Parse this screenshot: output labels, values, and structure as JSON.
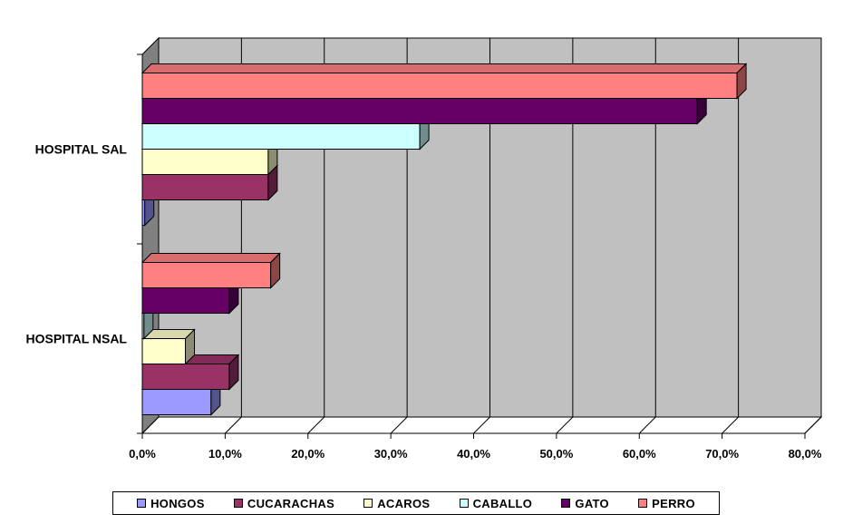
{
  "chart_data": {
    "type": "bar",
    "orientation": "horizontal",
    "three_d": true,
    "categories": [
      "HOSPITAL NSAL",
      "HOSPITAL SAL"
    ],
    "x_ticks": [
      "0,0%",
      "10,0%",
      "20,0%",
      "30,0%",
      "40,0%",
      "50,0%",
      "60,0%",
      "70,0%",
      "80,0%"
    ],
    "xlim": [
      0,
      80
    ],
    "grid": true,
    "legend_position": "bottom",
    "series": [
      {
        "name": "HONGOS",
        "color": "#9999ff",
        "values": [
          8.3,
          0.3
        ]
      },
      {
        "name": "CUCARACHAS",
        "color": "#993366",
        "values": [
          10.5,
          15.2
        ]
      },
      {
        "name": "ACAROS",
        "color": "#ffffcc",
        "values": [
          5.2,
          15.2
        ]
      },
      {
        "name": "CABALLO",
        "color": "#ccffff",
        "values": [
          0.2,
          33.5
        ]
      },
      {
        "name": "GATO",
        "color": "#660066",
        "values": [
          10.5,
          67.0
        ]
      },
      {
        "name": "PERRO",
        "color": "#ff8080",
        "values": [
          15.5,
          71.8
        ]
      }
    ]
  }
}
